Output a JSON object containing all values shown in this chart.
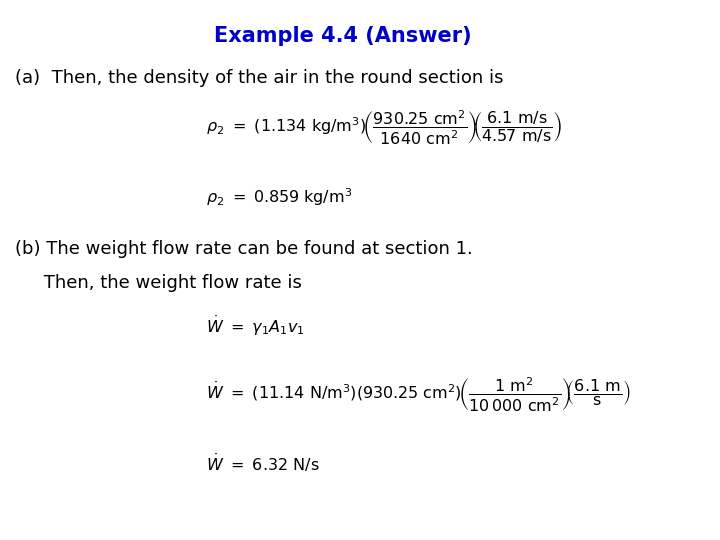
{
  "title": "Example 4.4 (Answer)",
  "title_color": "#0000CC",
  "title_fontsize": 15,
  "bg_color": "#ffffff",
  "part_a_label": "(a)  Then, the density of the air in the round section is",
  "part_b_label1": "(b) The weight flow rate can be found at section 1.",
  "part_b_label2": "     Then, the weight flow rate is",
  "text_fontsize": 13,
  "eq_fontsize": 11.5
}
